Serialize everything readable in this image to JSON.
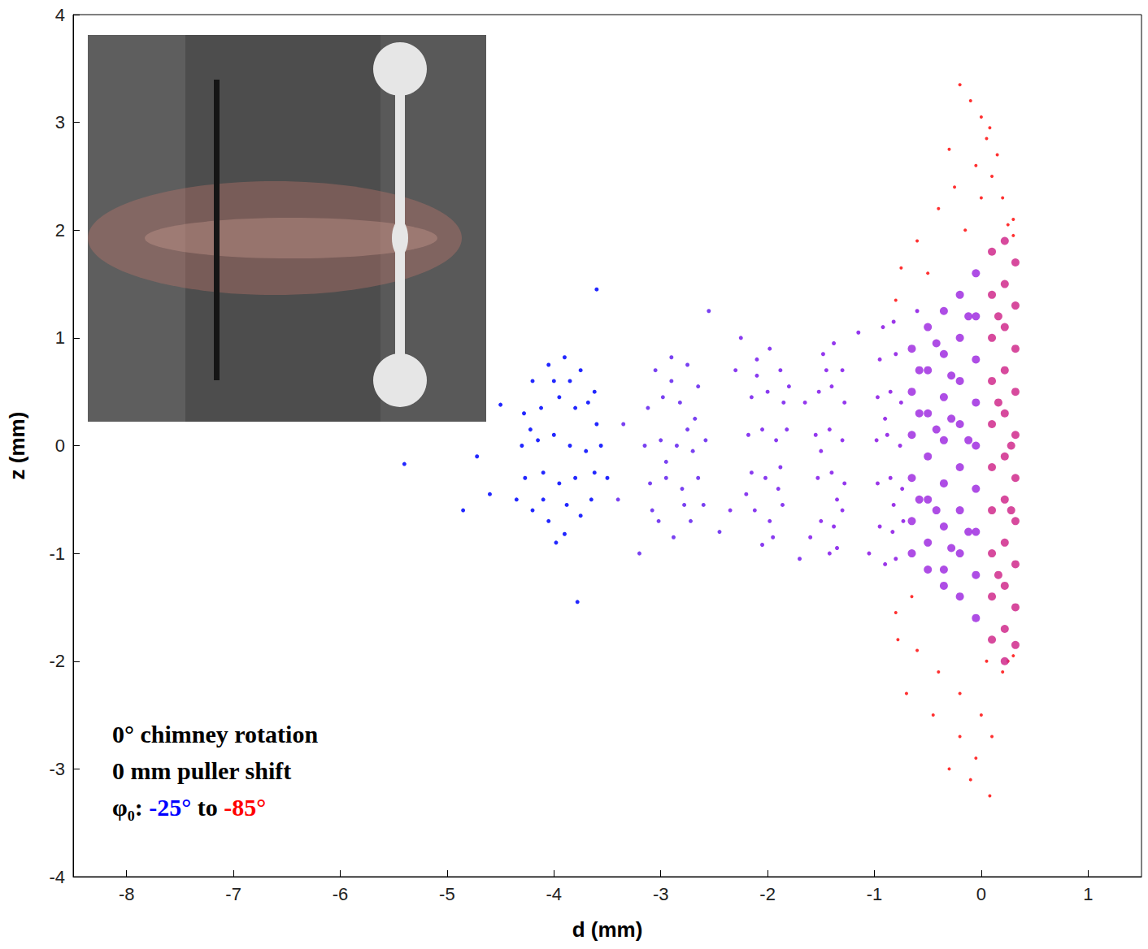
{
  "chart_data": {
    "type": "scatter",
    "x_label": "d (mm)",
    "y_label": "z (mm)",
    "xlim": [
      -8.5,
      1.5
    ],
    "xticks": [
      -8,
      -7,
      -6,
      -5,
      -4,
      -3,
      -2,
      -1,
      0,
      1
    ],
    "ylim": [
      -4,
      4
    ],
    "yticks": [
      -4,
      -3,
      -2,
      -1,
      0,
      1,
      2,
      3,
      4
    ],
    "grid": false,
    "marker": "circle",
    "annotations": [
      [
        {
          "text": "0° chimney rotation",
          "color": "#000000"
        }
      ],
      [
        {
          "text": "0 mm puller shift",
          "color": "#000000"
        }
      ],
      [
        {
          "text": "φ₀: ",
          "color": "#000000"
        },
        {
          "text": "-25°",
          "color": "#0000ff"
        },
        {
          "text": " to ",
          "color": "#000000"
        },
        {
          "text": "-85°",
          "color": "#ff0000"
        }
      ]
    ],
    "series": [
      {
        "color": "#ff1a1a",
        "values": [
          [
            -0.2,
            3.35
          ],
          [
            -0.1,
            3.2
          ],
          [
            0,
            3.05
          ],
          [
            0.05,
            2.85
          ],
          [
            -0.05,
            2.6
          ],
          [
            0.1,
            2.5
          ],
          [
            -0.25,
            2.4
          ],
          [
            -0.4,
            2.2
          ],
          [
            -0.6,
            1.9
          ],
          [
            -0.75,
            1.65
          ],
          [
            -0.8,
            1.35
          ],
          [
            0.2,
            2.3
          ],
          [
            0.0,
            2.3
          ],
          [
            -0.15,
            2.0
          ],
          [
            -0.5,
            1.6
          ],
          [
            0.25,
            2.05
          ],
          [
            0.3,
            2.1
          ],
          [
            -0.3,
            2.75
          ],
          [
            0.08,
            2.95
          ],
          [
            -0.65,
            -1.4
          ],
          [
            -0.8,
            -1.55
          ],
          [
            -0.6,
            -1.9
          ],
          [
            -0.4,
            -2.1
          ],
          [
            -0.2,
            -2.3
          ],
          [
            0,
            -2.5
          ],
          [
            0.1,
            -2.7
          ],
          [
            -0.05,
            -2.9
          ],
          [
            0.08,
            -3.25
          ],
          [
            -0.3,
            -3.0
          ],
          [
            -0.1,
            -3.1
          ],
          [
            0.2,
            -2.1
          ],
          [
            0.25,
            -2.0
          ],
          [
            -0.45,
            -2.5
          ],
          [
            -0.2,
            -2.7
          ],
          [
            0.05,
            -2.0
          ],
          [
            -0.7,
            -2.3
          ],
          [
            -0.78,
            -1.8
          ],
          [
            0.3,
            1.95
          ],
          [
            0.3,
            -1.95
          ],
          [
            0.15,
            2.7
          ]
        ]
      },
      {
        "color": "#0a10ff",
        "values": [
          [
            -4.2,
            0.6
          ],
          [
            -4.05,
            0.75
          ],
          [
            -3.9,
            0.82
          ],
          [
            -3.75,
            0.7
          ],
          [
            -3.62,
            0.5
          ],
          [
            -4.28,
            0.3
          ],
          [
            -4.12,
            0.35
          ],
          [
            -3.95,
            0.45
          ],
          [
            -3.8,
            0.35
          ],
          [
            -3.6,
            0.2
          ],
          [
            -4.3,
            0
          ],
          [
            -4.15,
            0.05
          ],
          [
            -4.0,
            0.1
          ],
          [
            -3.85,
            0
          ],
          [
            -3.7,
            -0.05
          ],
          [
            -3.56,
            0
          ],
          [
            -4.27,
            -0.3
          ],
          [
            -4.1,
            -0.25
          ],
          [
            -3.95,
            -0.35
          ],
          [
            -3.8,
            -0.3
          ],
          [
            -3.62,
            -0.25
          ],
          [
            -4.2,
            -0.6
          ],
          [
            -4.05,
            -0.7
          ],
          [
            -3.9,
            -0.82
          ],
          [
            -3.75,
            -0.65
          ],
          [
            -3.65,
            -0.5
          ],
          [
            -4.0,
            0.6
          ],
          [
            -3.85,
            0.6
          ],
          [
            -4.1,
            -0.5
          ],
          [
            -3.88,
            -0.55
          ],
          [
            -4.22,
            0.15
          ],
          [
            -3.68,
            0.4
          ],
          [
            -4.35,
            -0.5
          ],
          [
            -3.98,
            -0.9
          ],
          [
            -5.4,
            -0.17
          ],
          [
            -4.85,
            -0.6
          ],
          [
            -4.72,
            -0.1
          ],
          [
            -4.5,
            0.38
          ],
          [
            -4.6,
            -0.45
          ],
          [
            -3.6,
            1.45
          ],
          [
            -3.78,
            -1.45
          ],
          [
            -3.5,
            -0.3
          ]
        ]
      },
      {
        "color": "#6a2cf0",
        "values": [
          [
            -3.05,
            0.7
          ],
          [
            -2.9,
            0.82
          ],
          [
            -2.75,
            0.75
          ],
          [
            -2.65,
            0.55
          ],
          [
            -3.12,
            0.35
          ],
          [
            -2.98,
            0.45
          ],
          [
            -2.82,
            0.4
          ],
          [
            -2.68,
            0.25
          ],
          [
            -3.15,
            0
          ],
          [
            -3.0,
            0.05
          ],
          [
            -2.85,
            0
          ],
          [
            -2.7,
            -0.05
          ],
          [
            -2.58,
            0.05
          ],
          [
            -3.1,
            -0.35
          ],
          [
            -2.95,
            -0.3
          ],
          [
            -2.8,
            -0.4
          ],
          [
            -2.65,
            -0.3
          ],
          [
            -3.02,
            -0.7
          ],
          [
            -2.88,
            -0.85
          ],
          [
            -2.72,
            -0.7
          ],
          [
            -2.9,
            0.6
          ],
          [
            -2.78,
            -0.55
          ],
          [
            -3.08,
            -0.6
          ],
          [
            -2.6,
            -0.55
          ],
          [
            -2.95,
            -0.15
          ],
          [
            -2.75,
            0.15
          ],
          [
            -3.35,
            0.2
          ],
          [
            -3.4,
            -0.5
          ],
          [
            -2.55,
            1.25
          ],
          [
            -3.2,
            -1.0
          ],
          [
            -2.45,
            -0.8
          ]
        ]
      },
      {
        "color": "#7c26ee",
        "values": [
          [
            -2.1,
            0.8
          ],
          [
            -1.98,
            0.9
          ],
          [
            -1.88,
            0.7
          ],
          [
            -2.15,
            0.45
          ],
          [
            -2.0,
            0.5
          ],
          [
            -1.85,
            0.4
          ],
          [
            -2.18,
            0.1
          ],
          [
            -2.05,
            0.15
          ],
          [
            -1.92,
            0.05
          ],
          [
            -1.82,
            0.15
          ],
          [
            -2.15,
            -0.25
          ],
          [
            -2.02,
            -0.3
          ],
          [
            -1.88,
            -0.2
          ],
          [
            -2.12,
            -0.6
          ],
          [
            -1.98,
            -0.7
          ],
          [
            -1.86,
            -0.55
          ],
          [
            -2.05,
            -0.92
          ],
          [
            -1.95,
            -0.85
          ],
          [
            -2.1,
            0.65
          ],
          [
            -1.9,
            -0.4
          ],
          [
            -2.2,
            -0.45
          ],
          [
            -1.8,
            0.55
          ],
          [
            -2.3,
            0.7
          ],
          [
            -2.35,
            -0.6
          ],
          [
            -1.7,
            -1.05
          ],
          [
            -2.25,
            1.0
          ]
        ]
      },
      {
        "color": "#8822ec",
        "values": [
          [
            -1.48,
            0.85
          ],
          [
            -1.38,
            0.95
          ],
          [
            -1.3,
            0.7
          ],
          [
            -1.52,
            0.5
          ],
          [
            -1.4,
            0.55
          ],
          [
            -1.28,
            0.4
          ],
          [
            -1.55,
            0.1
          ],
          [
            -1.42,
            0.15
          ],
          [
            -1.3,
            0.05
          ],
          [
            -1.53,
            -0.3
          ],
          [
            -1.4,
            -0.25
          ],
          [
            -1.28,
            -0.35
          ],
          [
            -1.5,
            -0.7
          ],
          [
            -1.38,
            -0.75
          ],
          [
            -1.3,
            -0.6
          ],
          [
            -1.42,
            -1.0
          ],
          [
            -1.35,
            -0.95
          ],
          [
            -1.45,
            0.7
          ],
          [
            -1.35,
            -0.5
          ],
          [
            -1.5,
            -0.05
          ],
          [
            -1.65,
            0.4
          ],
          [
            -1.15,
            1.05
          ],
          [
            -1.6,
            -0.85
          ]
        ]
      },
      {
        "color": "#9020e6",
        "values": [
          [
            -0.92,
            1.1
          ],
          [
            -0.82,
            1.15
          ],
          [
            -0.95,
            0.8
          ],
          [
            -0.8,
            0.85
          ],
          [
            -0.97,
            0.45
          ],
          [
            -0.85,
            0.5
          ],
          [
            -0.75,
            0.4
          ],
          [
            -0.98,
            0.05
          ],
          [
            -0.88,
            0.1
          ],
          [
            -0.76,
            0
          ],
          [
            -0.97,
            -0.35
          ],
          [
            -0.85,
            -0.3
          ],
          [
            -0.74,
            -0.4
          ],
          [
            -0.95,
            -0.75
          ],
          [
            -0.83,
            -0.8
          ],
          [
            -0.73,
            -0.7
          ],
          [
            -0.9,
            -1.1
          ],
          [
            -0.8,
            -1.05
          ],
          [
            -0.9,
            0.25
          ],
          [
            -0.82,
            -0.55
          ],
          [
            -0.6,
            1.25
          ],
          [
            -1.05,
            -1.0
          ]
        ]
      },
      {
        "color": "#a02ee0",
        "values": [
          [
            -0.65,
            0.9
          ],
          [
            -0.65,
            0.5
          ],
          [
            -0.65,
            0.1
          ],
          [
            -0.65,
            -0.3
          ],
          [
            -0.65,
            -0.7
          ],
          [
            -0.65,
            -1.0
          ],
          [
            -0.5,
            1.1
          ],
          [
            -0.5,
            0.7
          ],
          [
            -0.5,
            0.3
          ],
          [
            -0.5,
            -0.1
          ],
          [
            -0.5,
            -0.5
          ],
          [
            -0.5,
            -0.9
          ],
          [
            -0.5,
            -1.15
          ],
          [
            -0.35,
            1.25
          ],
          [
            -0.35,
            0.85
          ],
          [
            -0.35,
            0.45
          ],
          [
            -0.35,
            0.05
          ],
          [
            -0.35,
            -0.35
          ],
          [
            -0.35,
            -0.75
          ],
          [
            -0.35,
            -1.15
          ],
          [
            -0.35,
            -1.3
          ],
          [
            -0.2,
            1.4
          ],
          [
            -0.2,
            1.0
          ],
          [
            -0.2,
            0.6
          ],
          [
            -0.2,
            0.2
          ],
          [
            -0.2,
            -0.2
          ],
          [
            -0.2,
            -0.6
          ],
          [
            -0.2,
            -1.0
          ],
          [
            -0.2,
            -1.4
          ],
          [
            -0.05,
            1.6
          ],
          [
            -0.05,
            1.2
          ],
          [
            -0.05,
            0.8
          ],
          [
            -0.05,
            0.4
          ],
          [
            -0.05,
            0
          ],
          [
            -0.05,
            -0.4
          ],
          [
            -0.05,
            -0.8
          ],
          [
            -0.05,
            -1.2
          ],
          [
            -0.05,
            -1.6
          ],
          [
            -0.58,
            0.3
          ],
          [
            -0.42,
            -0.6
          ],
          [
            -0.28,
            0.65
          ],
          [
            -0.12,
            -0.8
          ],
          [
            -0.58,
            -0.5
          ],
          [
            -0.42,
            0.95
          ],
          [
            -0.28,
            -0.95
          ],
          [
            -0.12,
            1.2
          ],
          [
            -0.12,
            0.05
          ],
          [
            -0.28,
            0.25
          ],
          [
            -0.42,
            0.15
          ],
          [
            -0.58,
            0.7
          ]
        ]
      },
      {
        "color": "#d02a8c",
        "values": [
          [
            0.1,
            1.8
          ],
          [
            0.1,
            1.4
          ],
          [
            0.1,
            1.0
          ],
          [
            0.1,
            0.6
          ],
          [
            0.1,
            0.2
          ],
          [
            0.1,
            -0.2
          ],
          [
            0.1,
            -0.6
          ],
          [
            0.1,
            -1.0
          ],
          [
            0.1,
            -1.4
          ],
          [
            0.1,
            -1.8
          ],
          [
            0.22,
            1.9
          ],
          [
            0.22,
            1.5
          ],
          [
            0.22,
            1.1
          ],
          [
            0.22,
            0.7
          ],
          [
            0.22,
            0.3
          ],
          [
            0.22,
            -0.1
          ],
          [
            0.22,
            -0.5
          ],
          [
            0.22,
            -0.9
          ],
          [
            0.22,
            -1.3
          ],
          [
            0.22,
            -1.7
          ],
          [
            0.22,
            -2.0
          ],
          [
            0.32,
            1.7
          ],
          [
            0.32,
            1.3
          ],
          [
            0.32,
            0.9
          ],
          [
            0.32,
            0.5
          ],
          [
            0.32,
            0.1
          ],
          [
            0.32,
            -0.3
          ],
          [
            0.32,
            -0.7
          ],
          [
            0.32,
            -1.1
          ],
          [
            0.32,
            -1.5
          ],
          [
            0.32,
            -1.85
          ],
          [
            0.16,
            1.2
          ],
          [
            0.16,
            -1.2
          ],
          [
            0.28,
            0.0
          ],
          [
            0.16,
            0.4
          ],
          [
            0.28,
            -0.6
          ]
        ]
      }
    ]
  }
}
